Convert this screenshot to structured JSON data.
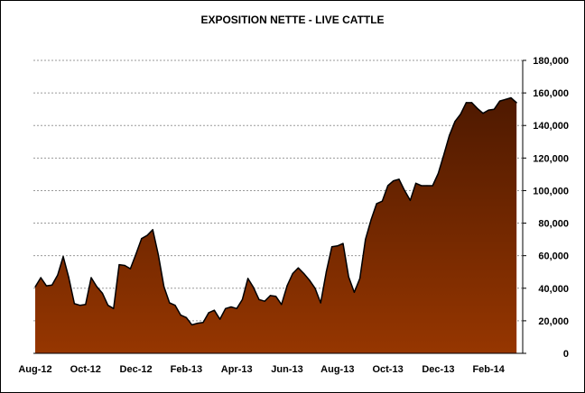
{
  "chart_data": {
    "type": "area",
    "title": "EXPOSITION NETTE - LIVE CATTLE",
    "xlabel": "",
    "ylabel": "",
    "y_axis_side": "right",
    "ylim": [
      0,
      180000
    ],
    "y_ticks": [
      "0",
      "20,000",
      "40,000",
      "60,000",
      "80,000",
      "100,000",
      "120,000",
      "140,000",
      "160,000",
      "180,000"
    ],
    "x_tick_labels": [
      "Aug-12",
      "Oct-12",
      "Dec-12",
      "Feb-13",
      "Apr-13",
      "Jun-13",
      "Aug-13",
      "Oct-13",
      "Dec-13",
      "Feb-14"
    ],
    "grid": true,
    "gradient_colors": [
      "#4e1900",
      "#963600"
    ],
    "series": [
      {
        "values": [
          40800,
          46500,
          41500,
          42000,
          48000,
          59500,
          46500,
          30500,
          29500,
          30000,
          46500,
          41000,
          37000,
          29500,
          27500,
          54500,
          54000,
          52000,
          61000,
          70500,
          72500,
          76000,
          60500,
          41000,
          31000,
          29500,
          23500,
          22000,
          17500,
          18500,
          19000,
          25000,
          26500,
          21000,
          27500,
          28500,
          27500,
          33000,
          46000,
          40500,
          33000,
          32000,
          35500,
          35000,
          30000,
          41500,
          49000,
          52500,
          49000,
          45000,
          40000,
          31000,
          50000,
          65500,
          66000,
          67500,
          47000,
          37500,
          46000,
          70000,
          82000,
          92000,
          93500,
          103000,
          106000,
          107000,
          100000,
          94000,
          104500,
          103000,
          103000,
          103000,
          110500,
          122000,
          134000,
          142500,
          147000,
          154000,
          154000,
          150500,
          147500,
          149500,
          150000,
          155000,
          156000,
          157000,
          154000
        ]
      }
    ]
  }
}
